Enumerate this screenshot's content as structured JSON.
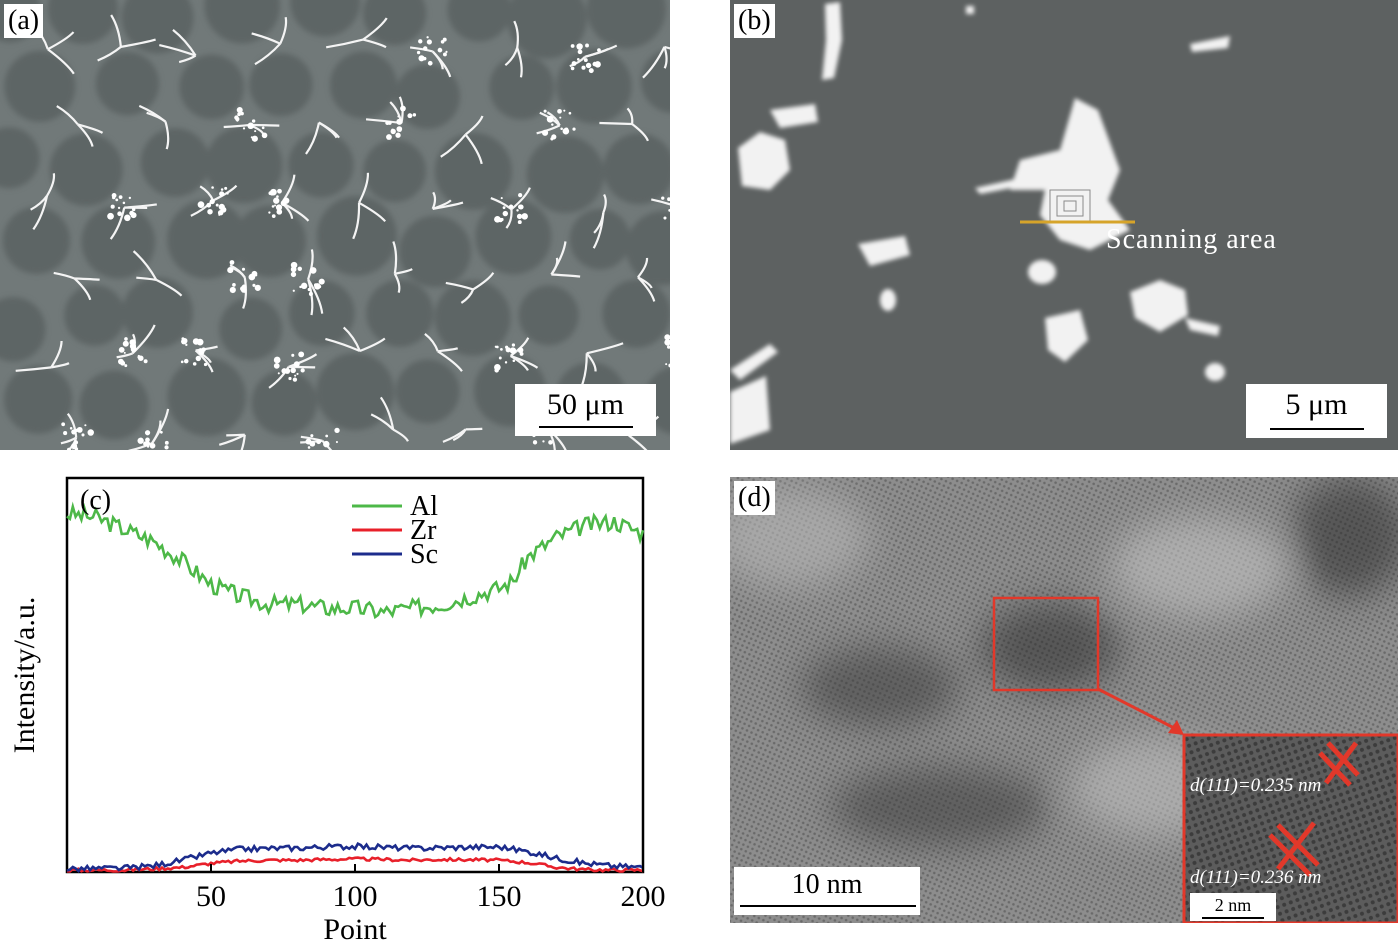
{
  "panels": {
    "a": {
      "tag": "(a)",
      "scale": "50 μm"
    },
    "b": {
      "tag": "(b)",
      "scale": "5 μm",
      "annotation": "Scanning area"
    },
    "c": {
      "tag": "(c)"
    },
    "d": {
      "tag": "(d)",
      "scale": "10 nm",
      "inset_scale": "2 nm",
      "inset_label_1": "d(111)=0.235 nm",
      "inset_label_2": "d(111)=0.236 nm"
    }
  },
  "chart_data": {
    "type": "line",
    "xlabel": "Point",
    "ylabel": "Intensity/a.u.",
    "xlim": [
      0,
      200
    ],
    "ylim": [
      0,
      100
    ],
    "xticks": [
      50,
      100,
      150,
      200
    ],
    "legend_placement": "top-center",
    "series": [
      {
        "name": "Al",
        "color": "#4db848",
        "x": [
          0,
          10,
          20,
          30,
          40,
          50,
          60,
          70,
          80,
          90,
          100,
          110,
          120,
          130,
          140,
          150,
          155,
          160,
          170,
          180,
          190,
          200
        ],
        "values": [
          91,
          90,
          87,
          84,
          79,
          73,
          70,
          68,
          68,
          67,
          67,
          66,
          67,
          68,
          70,
          72,
          74,
          80,
          85,
          88,
          89,
          86
        ]
      },
      {
        "name": "Zr",
        "color": "#e8202a",
        "x": [
          0,
          20,
          30,
          40,
          50,
          60,
          70,
          80,
          90,
          100,
          110,
          120,
          130,
          140,
          150,
          160,
          170,
          180,
          190,
          200
        ],
        "values": [
          0.5,
          0.5,
          0.8,
          1.2,
          2.2,
          2.8,
          3.0,
          3.0,
          3.2,
          3.3,
          3.2,
          3.0,
          3.2,
          3.1,
          3.0,
          2.4,
          1.2,
          0.6,
          0.5,
          0.5
        ]
      },
      {
        "name": "Sc",
        "color": "#1c2c8c",
        "x": [
          0,
          20,
          30,
          40,
          50,
          60,
          70,
          80,
          90,
          100,
          110,
          120,
          130,
          140,
          150,
          160,
          170,
          180,
          190,
          200
        ],
        "values": [
          0.8,
          1.0,
          1.6,
          3.0,
          4.8,
          5.8,
          6.0,
          6.1,
          6.4,
          6.5,
          6.3,
          6.0,
          6.2,
          6.3,
          6.4,
          5.2,
          3.5,
          2.2,
          1.5,
          1.2
        ]
      }
    ]
  }
}
